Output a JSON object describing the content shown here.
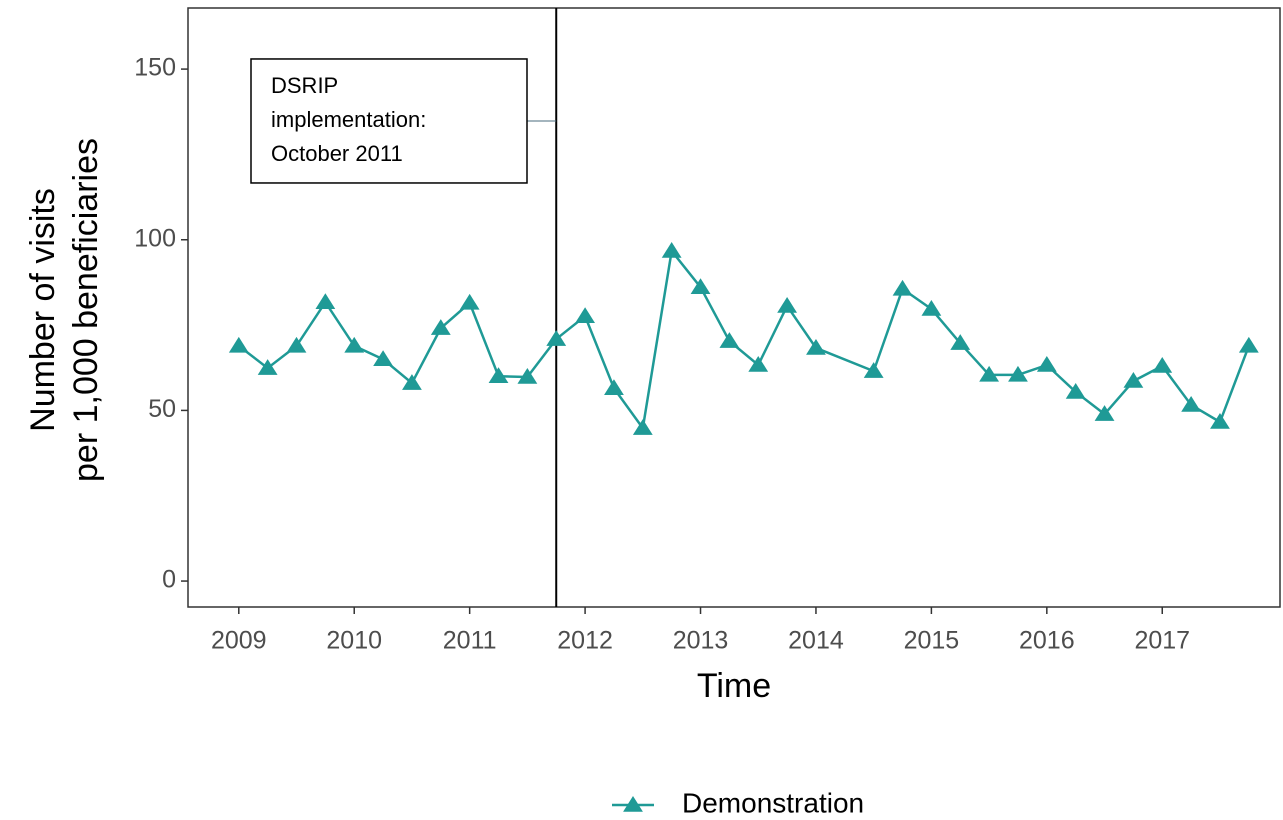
{
  "chart_data": {
    "type": "line",
    "xlabel": "Time",
    "ylabel": [
      "Number of visits",
      "per 1,000 beneficiaries"
    ],
    "x": [
      2009,
      2009.25,
      2009.5,
      2009.75,
      2010,
      2010.25,
      2010.5,
      2010.75,
      2011,
      2011.25,
      2011.5,
      2011.75,
      2012,
      2012.25,
      2012.5,
      2012.75,
      2013,
      2013.25,
      2013.5,
      2013.75,
      2014,
      2014.5,
      2014.75,
      2015,
      2015.25,
      2015.5,
      2015.75,
      2016,
      2016.25,
      2016.5,
      2016.75,
      2017,
      2017.25,
      2017.5,
      2017.75
    ],
    "series": [
      {
        "name": "Demonstration",
        "color": "#1f9a96",
        "values": [
          68.9,
          62.4,
          68.9,
          81.7,
          68.9,
          65,
          58,
          74.1,
          81.5,
          60,
          59.8,
          70.9,
          77.6,
          56.5,
          44.8,
          96.7,
          86.1,
          70.3,
          63.3,
          80.6,
          68.3,
          61.5,
          85.6,
          79.7,
          69.7,
          60.4,
          60.4,
          63.3,
          55.4,
          48.9,
          58.6,
          63,
          51.6,
          46.6,
          68.9
        ]
      }
    ],
    "xlim": [
      2008.56,
      2018.02
    ],
    "xticks": [
      2009,
      2010,
      2011,
      2012,
      2013,
      2014,
      2015,
      2016,
      2017
    ],
    "ylim": [
      -7.6,
      167.9
    ],
    "yticks": [
      0,
      50,
      100,
      150
    ],
    "vline": 2011.75,
    "annotation": {
      "lines": [
        "DSRIP",
        "implementation:",
        "October 2011"
      ],
      "y": 134.8
    },
    "legend": "bottom"
  }
}
